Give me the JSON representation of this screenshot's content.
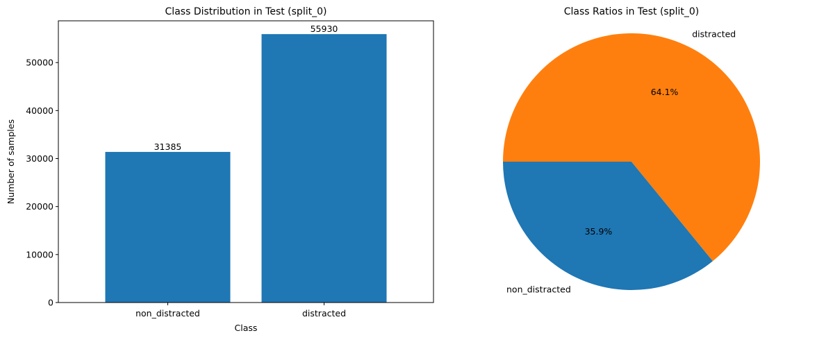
{
  "chart_data": [
    {
      "type": "bar",
      "title": "Class Distribution in Test (split_0)",
      "xlabel": "Class",
      "ylabel": "Number of samples",
      "categories": [
        "non_distracted",
        "distracted"
      ],
      "values": [
        31385,
        55930
      ],
      "value_labels": [
        "31385",
        "55930"
      ],
      "yticks": [
        0,
        10000,
        20000,
        30000,
        40000,
        50000
      ],
      "ytick_labels": [
        "0",
        "10000",
        "20000",
        "30000",
        "40000",
        "50000"
      ],
      "ylim": [
        0,
        58700
      ],
      "color": "#1f77b4",
      "grid": false
    },
    {
      "type": "pie",
      "title": "Class Ratios in Test (split_0)",
      "labels": [
        "non_distracted",
        "distracted"
      ],
      "values": [
        35.9,
        64.1
      ],
      "pct_labels": [
        "35.9%",
        "64.1%"
      ],
      "colors": [
        "#1f77b4",
        "#ff7f0e"
      ],
      "start_angle_deg": 180,
      "direction": "counterclockwise"
    }
  ]
}
